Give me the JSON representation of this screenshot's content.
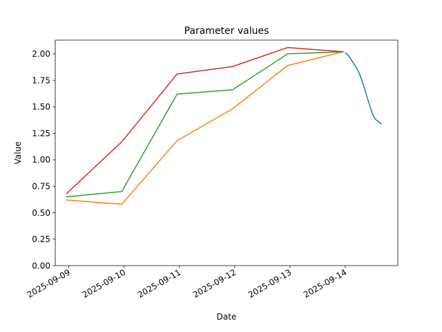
{
  "chart_data": {
    "type": "line",
    "title": "Parameter values",
    "xlabel": "Date",
    "ylabel": "Value",
    "xlim": [
      "2025-09-08 18:07",
      "2025-09-14 22:48"
    ],
    "ylim": [
      0,
      2.13
    ],
    "grid": false,
    "x_ticks": [
      "2025-09-09",
      "2025-09-10",
      "2025-09-11",
      "2025-09-12",
      "2025-09-13",
      "2025-09-14"
    ],
    "y_ticks": [
      "0.00",
      "0.25",
      "0.50",
      "0.75",
      "1.00",
      "1.25",
      "1.50",
      "1.75",
      "2.00"
    ],
    "series": [
      {
        "color": "#1f77b4",
        "x": [
          "2025-09-14 00:00",
          "2025-09-14 01:12",
          "2025-09-14 02:24",
          "2025-09-14 03:36",
          "2025-09-14 04:48",
          "2025-09-14 06:00",
          "2025-09-14 07:12",
          "2025-09-14 08:24",
          "2025-09-14 09:36",
          "2025-09-14 10:48",
          "2025-09-14 12:00",
          "2025-09-14 13:12",
          "2025-09-14 14:24",
          "2025-09-14 15:36"
        ],
        "y": [
          2.01,
          1.99,
          1.95,
          1.91,
          1.87,
          1.82,
          1.75,
          1.67,
          1.58,
          1.5,
          1.42,
          1.38,
          1.36,
          1.34
        ]
      },
      {
        "color": "#ff7f0e",
        "x": [
          "2025-09-08 23:00",
          "2025-09-09 23:00",
          "2025-09-10 23:00",
          "2025-09-11 23:00",
          "2025-09-12 23:00",
          "2025-09-13 23:00"
        ],
        "y": [
          0.62,
          0.58,
          1.18,
          1.48,
          1.89,
          2.02
        ]
      },
      {
        "color": "#2ca02c",
        "x": [
          "2025-09-08 23:00",
          "2025-09-09 23:00",
          "2025-09-10 23:00",
          "2025-09-11 23:00",
          "2025-09-12 23:00",
          "2025-09-13 23:00"
        ],
        "y": [
          0.65,
          0.7,
          1.62,
          1.66,
          2.0,
          2.02
        ]
      },
      {
        "color": "#d62728",
        "x": [
          "2025-09-08 23:00",
          "2025-09-09 23:00",
          "2025-09-10 23:00",
          "2025-09-11 23:00",
          "2025-09-12 23:00",
          "2025-09-13 23:00"
        ],
        "y": [
          0.68,
          1.17,
          1.81,
          1.88,
          2.06,
          2.02
        ]
      }
    ]
  }
}
